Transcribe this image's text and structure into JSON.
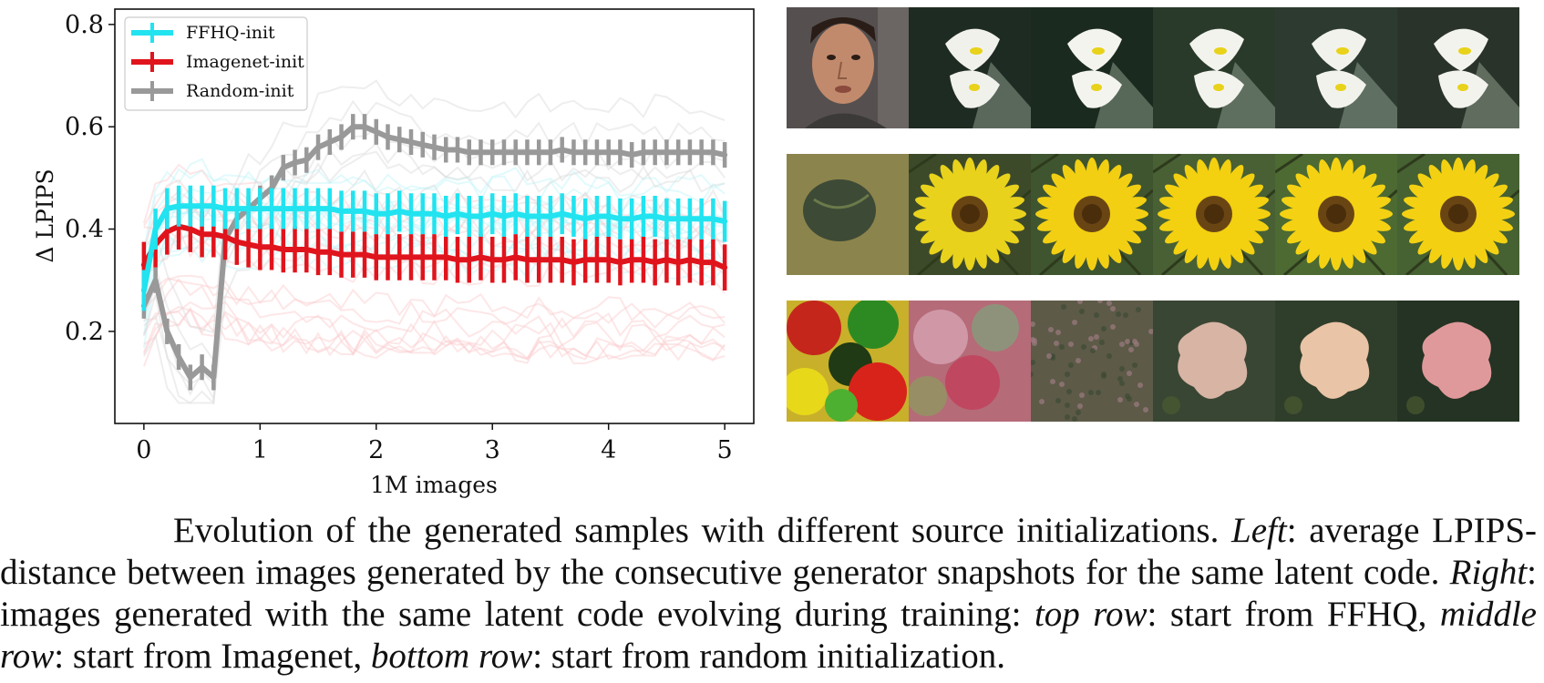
{
  "chart_data": {
    "type": "line",
    "title": "",
    "xlabel": "1M images",
    "ylabel": "Δ LPIPS",
    "xlim": [
      -0.25,
      5.25
    ],
    "ylim": [
      0.02,
      0.83
    ],
    "xticks": [
      0,
      1,
      2,
      3,
      4,
      5
    ],
    "yticks": [
      0.2,
      0.4,
      0.6,
      0.8
    ],
    "xtick_labels": [
      "0",
      "1",
      "2",
      "3",
      "4",
      "5"
    ],
    "ytick_labels": [
      "0.2",
      "0.4",
      "0.6",
      "0.8"
    ],
    "legend_position": "top-left",
    "grid": false,
    "error_bars": true,
    "series": [
      {
        "name": "FFHQ-init",
        "color": "#22e3f0",
        "x": [
          0,
          0.1,
          0.2,
          0.3,
          0.4,
          0.5,
          0.6,
          0.7,
          0.8,
          0.9,
          1.0,
          1.1,
          1.2,
          1.3,
          1.4,
          1.5,
          1.6,
          1.7,
          1.8,
          1.9,
          2.0,
          2.1,
          2.2,
          2.3,
          2.4,
          2.5,
          2.6,
          2.7,
          2.8,
          2.9,
          3.0,
          3.1,
          3.2,
          3.3,
          3.4,
          3.5,
          3.6,
          3.7,
          3.8,
          3.9,
          4.0,
          4.1,
          4.2,
          4.3,
          4.4,
          4.5,
          4.6,
          4.7,
          4.8,
          4.9,
          5.0
        ],
        "y": [
          0.28,
          0.4,
          0.44,
          0.445,
          0.445,
          0.445,
          0.445,
          0.44,
          0.44,
          0.44,
          0.44,
          0.44,
          0.44,
          0.44,
          0.44,
          0.44,
          0.44,
          0.435,
          0.435,
          0.435,
          0.43,
          0.43,
          0.435,
          0.43,
          0.43,
          0.43,
          0.425,
          0.43,
          0.425,
          0.425,
          0.43,
          0.425,
          0.43,
          0.425,
          0.425,
          0.425,
          0.43,
          0.425,
          0.42,
          0.425,
          0.425,
          0.42,
          0.42,
          0.425,
          0.425,
          0.42,
          0.42,
          0.42,
          0.42,
          0.42,
          0.415
        ],
        "err": 0.04
      },
      {
        "name": "Imagenet-init",
        "color": "#e0141c",
        "x": [
          0,
          0.1,
          0.2,
          0.3,
          0.4,
          0.5,
          0.6,
          0.7,
          0.8,
          0.9,
          1.0,
          1.1,
          1.2,
          1.3,
          1.4,
          1.5,
          1.6,
          1.7,
          1.8,
          1.9,
          2.0,
          2.1,
          2.2,
          2.3,
          2.4,
          2.5,
          2.6,
          2.7,
          2.8,
          2.9,
          3.0,
          3.1,
          3.2,
          3.3,
          3.4,
          3.5,
          3.6,
          3.7,
          3.8,
          3.9,
          4.0,
          4.1,
          4.2,
          4.3,
          4.4,
          4.5,
          4.6,
          4.7,
          4.8,
          4.9,
          5.0
        ],
        "y": [
          0.33,
          0.37,
          0.395,
          0.405,
          0.4,
          0.39,
          0.39,
          0.385,
          0.375,
          0.37,
          0.365,
          0.365,
          0.36,
          0.36,
          0.36,
          0.355,
          0.355,
          0.35,
          0.35,
          0.35,
          0.345,
          0.345,
          0.345,
          0.345,
          0.345,
          0.345,
          0.345,
          0.34,
          0.34,
          0.345,
          0.34,
          0.34,
          0.345,
          0.34,
          0.34,
          0.34,
          0.34,
          0.335,
          0.34,
          0.34,
          0.34,
          0.335,
          0.34,
          0.34,
          0.335,
          0.34,
          0.335,
          0.34,
          0.335,
          0.335,
          0.325
        ],
        "err": 0.045
      },
      {
        "name": "Random-init",
        "color": "#999999",
        "x": [
          0,
          0.1,
          0.2,
          0.3,
          0.4,
          0.5,
          0.6,
          0.7,
          0.8,
          0.9,
          1.0,
          1.1,
          1.2,
          1.3,
          1.4,
          1.5,
          1.6,
          1.7,
          1.8,
          1.9,
          2.0,
          2.1,
          2.2,
          2.3,
          2.4,
          2.5,
          2.6,
          2.7,
          2.8,
          2.9,
          3.0,
          3.1,
          3.2,
          3.3,
          3.4,
          3.5,
          3.6,
          3.7,
          3.8,
          3.9,
          4.0,
          4.1,
          4.2,
          4.3,
          4.4,
          4.5,
          4.6,
          4.7,
          4.8,
          4.9,
          5.0
        ],
        "y": [
          0.25,
          0.3,
          0.2,
          0.15,
          0.11,
          0.13,
          0.11,
          0.38,
          0.42,
          0.44,
          0.46,
          0.48,
          0.52,
          0.53,
          0.535,
          0.56,
          0.57,
          0.58,
          0.6,
          0.6,
          0.59,
          0.58,
          0.575,
          0.57,
          0.565,
          0.56,
          0.555,
          0.555,
          0.55,
          0.55,
          0.55,
          0.55,
          0.55,
          0.55,
          0.55,
          0.55,
          0.555,
          0.55,
          0.55,
          0.55,
          0.55,
          0.55,
          0.545,
          0.55,
          0.55,
          0.55,
          0.55,
          0.55,
          0.55,
          0.55,
          0.545
        ],
        "err": 0.025
      }
    ]
  },
  "image_rows": [
    {
      "name": "top-row",
      "tiles": [
        {
          "kind": "face",
          "bg": "#55504f",
          "fg": "#c28a6c"
        },
        {
          "kind": "calla",
          "bg": "#1e2b22",
          "fg": "#f1f1ec"
        },
        {
          "kind": "calla",
          "bg": "#1a2a1e",
          "fg": "#f4f4ef"
        },
        {
          "kind": "calla",
          "bg": "#2a3a2a",
          "fg": "#f3f3ee"
        },
        {
          "kind": "calla",
          "bg": "#2c3a30",
          "fg": "#f2f2ec"
        },
        {
          "kind": "calla",
          "bg": "#2a3329",
          "fg": "#f3f3ee"
        }
      ]
    },
    {
      "name": "middle-row",
      "tiles": [
        {
          "kind": "stone",
          "bg": "#8c844d",
          "fg": "#3d4a36"
        },
        {
          "kind": "sunflower",
          "bg": "#3d4a2a",
          "fg": "#e9d21c"
        },
        {
          "kind": "sunflower",
          "bg": "#3f5530",
          "fg": "#f2cf12"
        },
        {
          "kind": "sunflower",
          "bg": "#486034",
          "fg": "#f3d010"
        },
        {
          "kind": "sunflower",
          "bg": "#4c6a32",
          "fg": "#f4d213"
        },
        {
          "kind": "sunflower",
          "bg": "#466132",
          "fg": "#f3d112"
        }
      ]
    },
    {
      "name": "bottom-row",
      "tiles": [
        {
          "kind": "noise",
          "bg": "#c8b02a",
          "fg": "#d8231a"
        },
        {
          "kind": "blur",
          "bg": "#b56b78",
          "fg": "#c53755"
        },
        {
          "kind": "speckle",
          "bg": "#5d5a48",
          "fg": "#9c7a80"
        },
        {
          "kind": "blob",
          "bg": "#3a4634",
          "fg": "#d7b4a4"
        },
        {
          "kind": "blob",
          "bg": "#2f3d2b",
          "fg": "#e9c4a6"
        },
        {
          "kind": "blob",
          "bg": "#243323",
          "fg": "#e0999a"
        }
      ]
    }
  ],
  "caption": {
    "part1": "Evolution of the generated samples with different source initializations. ",
    "left": "Left",
    "part2": ": average LPIPS-distance between images generated by the consecutive generator snapshots for the same latent code. ",
    "right": "Right",
    "part3": ": images generated with the same latent code evolving during training: ",
    "top_row": "top row",
    "part4": ": start from FFHQ, ",
    "middle_row": "middle row",
    "part5": ": start from Imagenet, ",
    "bottom_row": "bottom row",
    "part6": ": start from random initialization."
  }
}
